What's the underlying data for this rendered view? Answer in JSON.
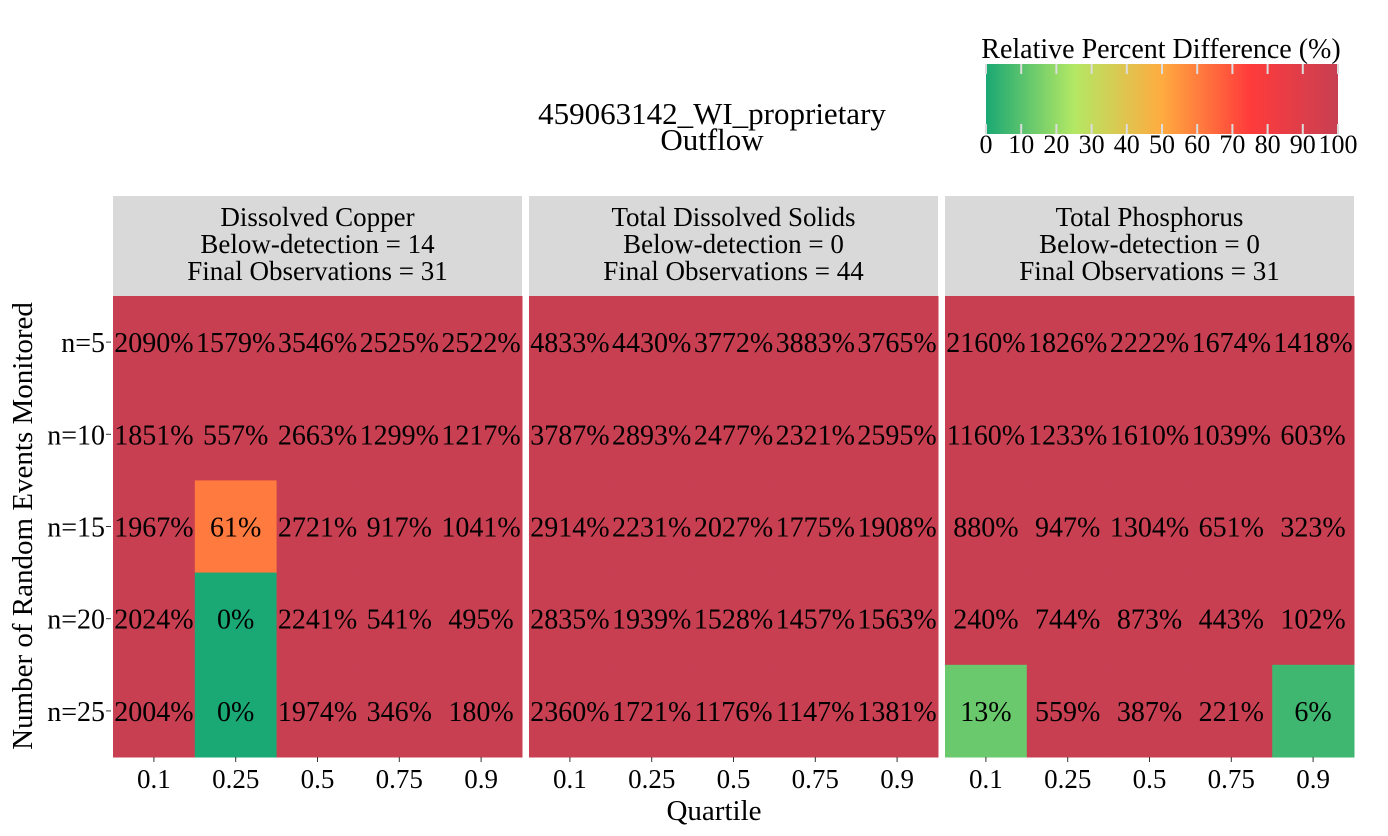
{
  "chart_data": {
    "type": "heatmap",
    "title": [
      "459063142_WI_proprietary",
      "Outflow"
    ],
    "xlabel": "Quartile",
    "ylabel": "Number of Random Events Monitored",
    "x_categories": [
      "0.1",
      "0.25",
      "0.5",
      "0.75",
      "0.9"
    ],
    "y_categories": [
      "n=5",
      "n=10",
      "n=15",
      "n=20",
      "n=25"
    ],
    "colorbar": {
      "label": "Relative Percent Difference (%)",
      "range": [
        0,
        100
      ],
      "ticks": [
        "0",
        "10",
        "20",
        "30",
        "40",
        "50",
        "60",
        "70",
        "80",
        "90",
        "100"
      ],
      "colors": [
        "#1aa874",
        "#b3e864",
        "#ffab40",
        "#ff3b3b",
        "#c83f52"
      ]
    },
    "panels": [
      {
        "header": [
          "Dissolved Copper",
          "Below-detection = 14",
          "Final Observations = 31"
        ],
        "values": [
          [
            2090,
            1579,
            3546,
            2525,
            2522
          ],
          [
            1851,
            557,
            2663,
            1299,
            1217
          ],
          [
            1967,
            61,
            2721,
            917,
            1041
          ],
          [
            2024,
            0,
            2241,
            541,
            495
          ],
          [
            2004,
            0,
            1974,
            346,
            180
          ]
        ]
      },
      {
        "header": [
          "Total Dissolved Solids",
          "Below-detection = 0",
          "Final Observations = 44"
        ],
        "values": [
          [
            4833,
            4430,
            3772,
            3883,
            3765
          ],
          [
            3787,
            2893,
            2477,
            2321,
            2595
          ],
          [
            2914,
            2231,
            2027,
            1775,
            1908
          ],
          [
            2835,
            1939,
            1528,
            1457,
            1563
          ],
          [
            2360,
            1721,
            1176,
            1147,
            1381
          ]
        ]
      },
      {
        "header": [
          "Total Phosphorus",
          "Below-detection = 0",
          "Final Observations = 31"
        ],
        "values": [
          [
            2160,
            1826,
            2222,
            1674,
            1418
          ],
          [
            1160,
            1233,
            1610,
            1039,
            603
          ],
          [
            880,
            947,
            1304,
            651,
            323
          ],
          [
            240,
            744,
            873,
            443,
            102
          ],
          [
            13,
            559,
            387,
            221,
            6
          ]
        ]
      }
    ]
  }
}
